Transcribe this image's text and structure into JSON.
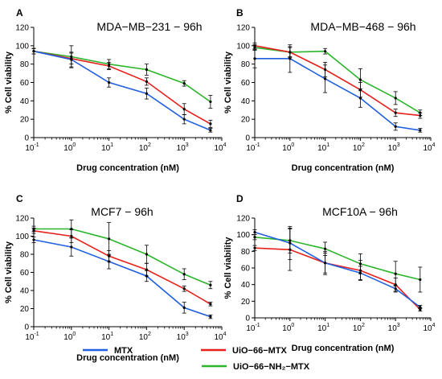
{
  "legend": [
    {
      "name": "MTX",
      "color": "#1f5fe0"
    },
    {
      "name": "UiO−66−MTX",
      "color": "#e8201c"
    },
    {
      "name": "UiO−66−NH₂−MTX",
      "color": "#2bb52b"
    }
  ],
  "chart_data": [
    {
      "type": "line",
      "panel": "A",
      "title": "MDA−MB−231 − 96h",
      "xlabel": "Drug concentration (nM)",
      "ylabel": "% Cell viability",
      "x_scale": "log",
      "xlim": [
        0.1,
        10000
      ],
      "ylim": [
        0,
        120
      ],
      "yticks": [
        0,
        20,
        40,
        60,
        80,
        100,
        120
      ],
      "x": [
        0.1,
        1,
        10,
        100,
        1000,
        5000
      ],
      "series": [
        {
          "name": "MTX",
          "values": [
            94,
            85,
            60,
            48,
            20,
            8
          ],
          "errors": [
            3,
            8,
            5,
            6,
            5,
            2
          ]
        },
        {
          "name": "UiO−66−MTX",
          "values": [
            94,
            86,
            78,
            61,
            31,
            15
          ],
          "errors": [
            3,
            6,
            4,
            4,
            6,
            4
          ]
        },
        {
          "name": "UiO−66−NH₂−MTX",
          "values": [
            94,
            88,
            80,
            74,
            59,
            39
          ],
          "errors": [
            3,
            12,
            5,
            6,
            3,
            7
          ]
        }
      ]
    },
    {
      "type": "line",
      "panel": "B",
      "title": "MDA−MB−468 − 96h",
      "xlabel": "Drug concentration (nM)",
      "ylabel": "% Cell viability",
      "x_scale": "log",
      "xlim": [
        0.1,
        10000
      ],
      "ylim": [
        0,
        120
      ],
      "yticks": [
        0,
        20,
        40,
        60,
        80,
        100,
        120
      ],
      "x": [
        0.1,
        1,
        10,
        100,
        1000,
        5000
      ],
      "series": [
        {
          "name": "MTX",
          "values": [
            86,
            86,
            64,
            43,
            12,
            8
          ],
          "errors": [
            10,
            15,
            15,
            10,
            4,
            2
          ]
        },
        {
          "name": "UiO−66−MTX",
          "values": [
            100,
            93,
            74,
            52,
            27,
            24
          ],
          "errors": [
            3,
            5,
            8,
            8,
            4,
            3
          ]
        },
        {
          "name": "UiO−66−NH₂−MTX",
          "values": [
            98,
            93,
            94,
            63,
            43,
            27
          ],
          "errors": [
            3,
            6,
            3,
            12,
            7,
            3
          ]
        }
      ]
    },
    {
      "type": "line",
      "panel": "C",
      "title": "MCF7 − 96h",
      "xlabel": "Drug concentration (nM)",
      "ylabel": "% Cell viability",
      "x_scale": "log",
      "xlim": [
        0.1,
        10000
      ],
      "ylim": [
        0,
        120
      ],
      "yticks": [
        0,
        20,
        40,
        60,
        80,
        100,
        120
      ],
      "x": [
        0.1,
        1,
        10,
        100,
        1000,
        5000
      ],
      "series": [
        {
          "name": "MTX",
          "values": [
            96,
            88,
            72,
            56,
            21,
            11
          ],
          "errors": [
            3,
            10,
            8,
            6,
            6,
            2
          ]
        },
        {
          "name": "UiO−66−MTX",
          "values": [
            106,
            100,
            78,
            63,
            42,
            25
          ],
          "errors": [
            3,
            7,
            6,
            7,
            3,
            2
          ]
        },
        {
          "name": "UiO−66−NH₂−MTX",
          "values": [
            108,
            108,
            97,
            80,
            58,
            46
          ],
          "errors": [
            3,
            10,
            18,
            10,
            6,
            4
          ]
        }
      ]
    },
    {
      "type": "line",
      "panel": "D",
      "title": "MCF10A − 96h",
      "xlabel": "Drug concentration (nM)",
      "ylabel": "% Cell viability",
      "x_scale": "log",
      "xlim": [
        0.1,
        10000
      ],
      "ylim": [
        0,
        120
      ],
      "yticks": [
        0,
        20,
        40,
        60,
        80,
        100,
        120
      ],
      "x": [
        0.1,
        1,
        10,
        100,
        1000,
        5000
      ],
      "series": [
        {
          "name": "MTX",
          "values": [
            103,
            90,
            66,
            54,
            35,
            13
          ],
          "errors": [
            3,
            20,
            12,
            8,
            4,
            2
          ]
        },
        {
          "name": "UiO−66−MTX",
          "values": [
            84,
            82,
            66,
            57,
            40,
            10
          ],
          "errors": [
            3,
            25,
            14,
            12,
            8,
            2
          ]
        },
        {
          "name": "UiO−66−NH₂−MTX",
          "values": [
            97,
            93,
            83,
            65,
            53,
            46
          ],
          "errors": [
            3,
            15,
            8,
            12,
            15,
            15
          ]
        }
      ]
    }
  ]
}
